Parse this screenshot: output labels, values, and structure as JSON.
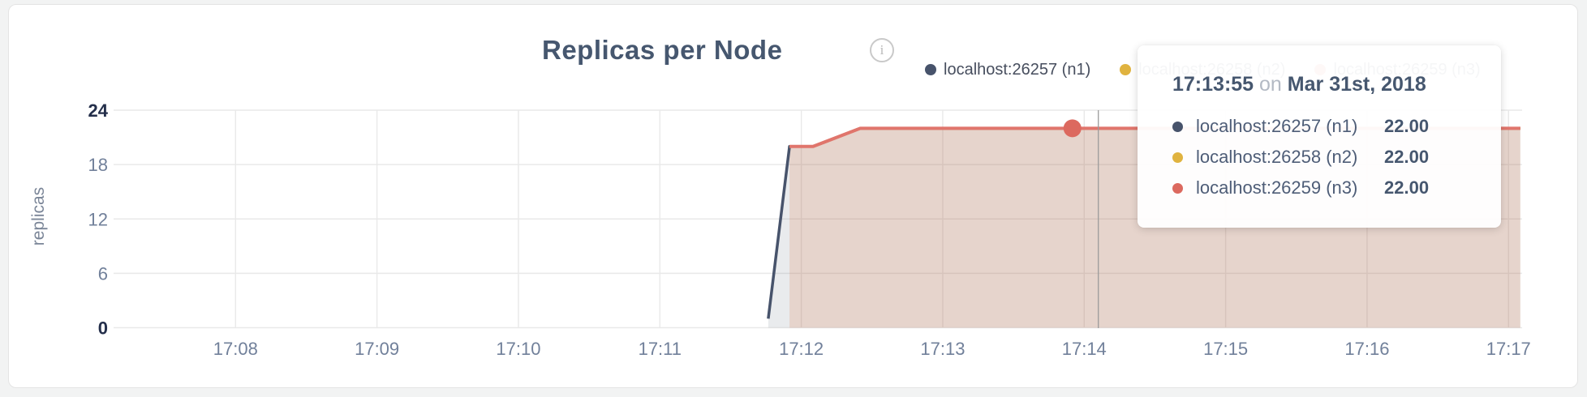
{
  "page": {
    "title": "Replicas per Node",
    "info_icon_glyph": "i"
  },
  "legend": {
    "items": [
      {
        "label": "localhost:26257 (n1)",
        "color": "#47536b"
      },
      {
        "label": "localhost:26258 (n2)",
        "color": "#e0b33f"
      },
      {
        "label": "localhost:26259 (n3)",
        "color": "#e0756c"
      }
    ]
  },
  "tooltip": {
    "time": "17:13:55",
    "on_word": "on",
    "date": "Mar 31st, 2018",
    "rows": [
      {
        "label": "localhost:26257 (n1)",
        "value": "22.00",
        "color": "#47536b"
      },
      {
        "label": "localhost:26258 (n2)",
        "value": "22.00",
        "color": "#e0b33f"
      },
      {
        "label": "localhost:26259 (n3)",
        "value": "22.00",
        "color": "#dc695f"
      }
    ]
  },
  "chart_data": {
    "type": "area",
    "title": "Replicas per Node",
    "ylabel": "replicas",
    "xlabel": "",
    "ylim": [
      0,
      24
    ],
    "y_ticks": [
      0,
      6,
      12,
      18,
      24
    ],
    "x_ticks": [
      "17:08",
      "17:09",
      "17:10",
      "17:11",
      "17:12",
      "17:13",
      "17:14",
      "17:15",
      "17:16",
      "17:17"
    ],
    "x_domain": [
      "17:07:00",
      "17:17:05"
    ],
    "grid": true,
    "legend_position": "top-right",
    "series": [
      {
        "name": "localhost:26257 (n1)",
        "color": "#47536b",
        "fill": "rgba(71,88,110,0.12)",
        "points": [
          [
            "17:11:46",
            1
          ],
          [
            "17:11:55",
            20
          ],
          [
            "17:12:05",
            20
          ],
          [
            "17:12:25",
            22
          ],
          [
            "17:17:05",
            22
          ]
        ]
      },
      {
        "name": "localhost:26258 (n2)",
        "color": "#e0b33f",
        "fill": "rgba(224,179,63,0.07)",
        "points": [
          [
            "17:11:55",
            20
          ],
          [
            "17:12:05",
            20
          ],
          [
            "17:12:25",
            22
          ],
          [
            "17:17:05",
            22
          ]
        ]
      },
      {
        "name": "localhost:26259 (n3)",
        "color": "#e0756c",
        "fill": "rgba(222,113,102,0.16)",
        "points": [
          [
            "17:11:55",
            20
          ],
          [
            "17:12:05",
            20
          ],
          [
            "17:12:25",
            22
          ],
          [
            "17:17:05",
            22
          ]
        ]
      }
    ],
    "hover": {
      "crosshair_time": "17:14:06",
      "highlight_point": {
        "series": "localhost:26259 (n3)",
        "time": "17:13:55",
        "value": 22,
        "dot_color": "#dc695f"
      }
    }
  }
}
